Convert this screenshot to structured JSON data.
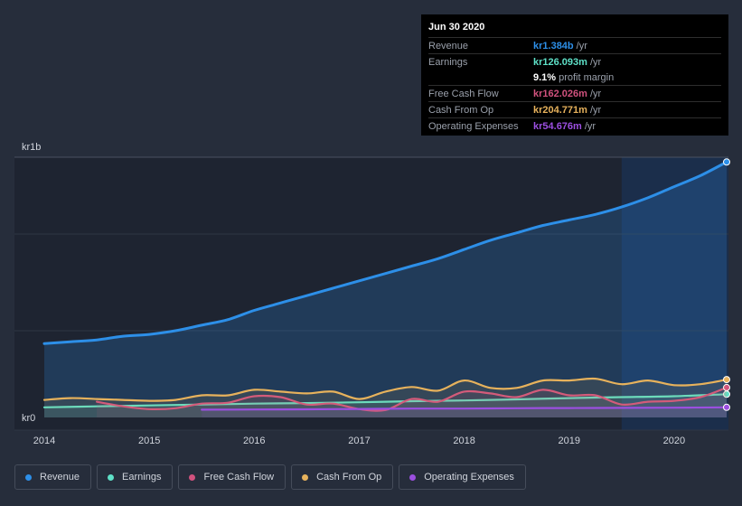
{
  "chart_data": {
    "type": "area",
    "y_top_label": "kr1b",
    "y_bottom_label": "kr0",
    "ylim": [
      0,
      1.4
    ],
    "xlim": [
      2014.0,
      2020.5
    ],
    "x_ticks": [
      "2014",
      "2015",
      "2016",
      "2017",
      "2018",
      "2019",
      "2020"
    ],
    "x_tick_values": [
      2014,
      2015,
      2016,
      2017,
      2018,
      2019,
      2020
    ],
    "highlight_range": [
      2019.5,
      2020.5
    ],
    "series": [
      {
        "name": "Revenue",
        "color": "#2d8fe8",
        "fill": true,
        "x": [
          2014.0,
          2014.25,
          2014.5,
          2014.75,
          2015.0,
          2015.25,
          2015.5,
          2015.75,
          2016.0,
          2016.25,
          2016.5,
          2016.75,
          2017.0,
          2017.25,
          2017.5,
          2017.75,
          2018.0,
          2018.25,
          2018.5,
          2018.75,
          2019.0,
          2019.25,
          2019.5,
          2019.75,
          2020.0,
          2020.25,
          2020.5
        ],
        "values": [
          0.4,
          0.41,
          0.42,
          0.44,
          0.45,
          0.47,
          0.5,
          0.53,
          0.58,
          0.62,
          0.66,
          0.7,
          0.74,
          0.78,
          0.82,
          0.86,
          0.91,
          0.96,
          1.0,
          1.04,
          1.07,
          1.1,
          1.14,
          1.19,
          1.25,
          1.31,
          1.384
        ]
      },
      {
        "name": "Earnings",
        "color": "#5ee0c7",
        "fill": false,
        "x": [
          2014.0,
          2014.5,
          2015.0,
          2015.5,
          2016.0,
          2016.5,
          2017.0,
          2017.5,
          2018.0,
          2018.5,
          2019.0,
          2019.5,
          2020.0,
          2020.5
        ],
        "values": [
          0.055,
          0.06,
          0.065,
          0.07,
          0.075,
          0.078,
          0.082,
          0.088,
          0.092,
          0.098,
          0.105,
          0.11,
          0.115,
          0.126
        ]
      },
      {
        "name": "Free Cash Flow",
        "color": "#d1527e",
        "fill": false,
        "x": [
          2014.5,
          2014.75,
          2015.0,
          2015.25,
          2015.5,
          2015.75,
          2016.0,
          2016.25,
          2016.5,
          2016.75,
          2017.0,
          2017.25,
          2017.5,
          2017.75,
          2018.0,
          2018.25,
          2018.5,
          2018.75,
          2019.0,
          2019.25,
          2019.5,
          2019.75,
          2020.0,
          2020.25,
          2020.5
        ],
        "values": [
          0.085,
          0.06,
          0.045,
          0.05,
          0.075,
          0.08,
          0.115,
          0.11,
          0.07,
          0.075,
          0.045,
          0.04,
          0.1,
          0.085,
          0.14,
          0.13,
          0.11,
          0.15,
          0.12,
          0.12,
          0.07,
          0.085,
          0.09,
          0.11,
          0.162
        ]
      },
      {
        "name": "Cash From Op",
        "color": "#e7b25c",
        "fill": false,
        "x": [
          2014.0,
          2014.25,
          2014.5,
          2014.75,
          2015.0,
          2015.25,
          2015.5,
          2015.75,
          2016.0,
          2016.25,
          2016.5,
          2016.75,
          2017.0,
          2017.25,
          2017.5,
          2017.75,
          2018.0,
          2018.25,
          2018.5,
          2018.75,
          2019.0,
          2019.25,
          2019.5,
          2019.75,
          2020.0,
          2020.25,
          2020.5
        ],
        "values": [
          0.095,
          0.105,
          0.1,
          0.095,
          0.09,
          0.095,
          0.12,
          0.12,
          0.15,
          0.14,
          0.13,
          0.14,
          0.1,
          0.14,
          0.165,
          0.145,
          0.2,
          0.16,
          0.16,
          0.2,
          0.2,
          0.21,
          0.18,
          0.2,
          0.175,
          0.18,
          0.205
        ]
      },
      {
        "name": "Operating Expenses",
        "color": "#9b4fe0",
        "fill": false,
        "x": [
          2015.5,
          2016.0,
          2016.5,
          2017.0,
          2017.5,
          2018.0,
          2018.5,
          2019.0,
          2019.5,
          2020.0,
          2020.5
        ],
        "values": [
          0.042,
          0.043,
          0.044,
          0.046,
          0.048,
          0.048,
          0.05,
          0.051,
          0.052,
          0.053,
          0.0547
        ]
      }
    ]
  },
  "tooltip": {
    "date": "Jun 30 2020",
    "rows": [
      {
        "label": "Revenue",
        "value": "kr1.384b",
        "unit": "/yr",
        "color": "#2d8fe8"
      },
      {
        "label": "Earnings",
        "value": "kr126.093m",
        "unit": "/yr",
        "color": "#5ee0c7"
      },
      {
        "margin_value": "9.1%",
        "margin_text": "profit margin"
      },
      {
        "label": "Free Cash Flow",
        "value": "kr162.026m",
        "unit": "/yr",
        "color": "#d1527e"
      },
      {
        "label": "Cash From Op",
        "value": "kr204.771m",
        "unit": "/yr",
        "color": "#e7b25c"
      },
      {
        "label": "Operating Expenses",
        "value": "kr54.676m",
        "unit": "/yr",
        "color": "#9b4fe0"
      }
    ]
  },
  "legend": [
    {
      "label": "Revenue",
      "color": "#2d8fe8"
    },
    {
      "label": "Earnings",
      "color": "#5ee0c7"
    },
    {
      "label": "Free Cash Flow",
      "color": "#d1527e"
    },
    {
      "label": "Cash From Op",
      "color": "#e7b25c"
    },
    {
      "label": "Operating Expenses",
      "color": "#9b4fe0"
    }
  ]
}
